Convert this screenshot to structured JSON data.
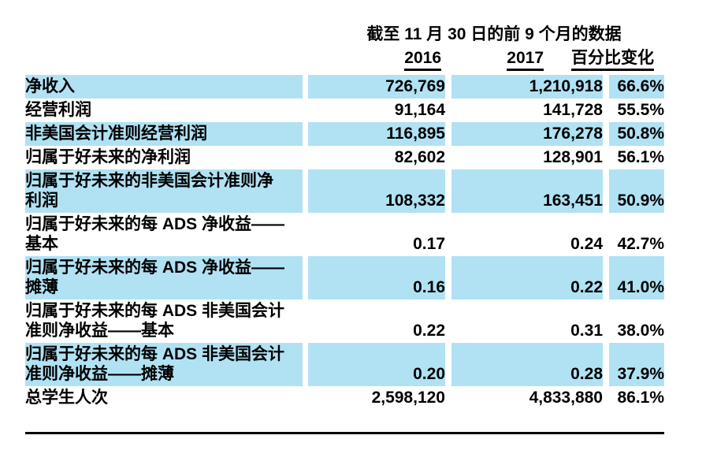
{
  "table": {
    "title": "截至 11 月 30 日的前 9 个月的数据",
    "columns": {
      "y2016": "2016",
      "y2017": "2017",
      "change": "百分比变化"
    },
    "rows": [
      {
        "label": "净收入",
        "v2016": "726,769",
        "v2017": "1,210,918",
        "change": "66.6%",
        "shaded": true
      },
      {
        "label": "经营利润",
        "v2016": "91,164",
        "v2017": "141,728",
        "change": "55.5%",
        "shaded": false
      },
      {
        "label": "非美国会计准则经营利润",
        "v2016": "116,895",
        "v2017": "176,278",
        "change": "50.8%",
        "shaded": true
      },
      {
        "label": "归属于好未来的净利润",
        "v2016": "82,602",
        "v2017": "128,901",
        "change": "56.1%",
        "shaded": false
      },
      {
        "label": "归属于好未来的非美国会计准则净\n利润",
        "v2016": "108,332",
        "v2017": "163,451",
        "change": "50.9%",
        "shaded": true
      },
      {
        "label": "归属于好未来的每 ADS 净收益——\n基本",
        "v2016": "0.17",
        "v2017": "0.24",
        "change": "42.7%",
        "shaded": false
      },
      {
        "label": "归属于好未来的每 ADS 净收益——\n摊薄",
        "v2016": "0.16",
        "v2017": "0.22",
        "change": "41.0%",
        "shaded": true
      },
      {
        "label": "归属于好未来的每 ADS 非美国会计\n准则净收益——基本",
        "v2016": "0.22",
        "v2017": "0.31",
        "change": "38.0%",
        "shaded": false
      },
      {
        "label": "归属于好未来的每 ADS 非美国会计\n准则净收益——摊薄",
        "v2016": "0.20",
        "v2017": "0.28",
        "change": "37.9%",
        "shaded": true
      },
      {
        "label": "总学生人次",
        "v2016": "2,598,120",
        "v2017": "4,833,880",
        "change": "86.1%",
        "shaded": false
      }
    ],
    "colors": {
      "row_highlight": "#b0e2f3",
      "rule": "#000000",
      "text": "#000000"
    }
  }
}
